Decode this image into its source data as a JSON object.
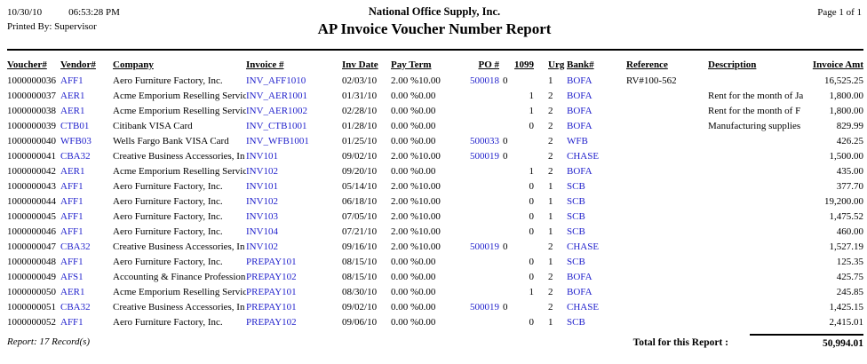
{
  "header": {
    "date": "10/30/10",
    "time": "06:53:28 PM",
    "printed_by": "Printed By: Supervisor",
    "company_name": "National Office Supply, Inc.",
    "report_title": "AP Invoice Voucher Number Report",
    "page_label": "Page 1 of 1"
  },
  "colors": {
    "link_blue": "#2222CC",
    "text": "#000000"
  },
  "columns": [
    "Voucher#",
    "Vendor#",
    "Company",
    "Invoice #",
    "Inv Date",
    "Pay Term",
    "PO #",
    "1099",
    "Urg",
    "Bank#",
    "Reference",
    "Description",
    "Invoice Amt"
  ],
  "rows": [
    {
      "voucher": "1000000036",
      "vendor": "AFF1",
      "company": "Aero Furniture Factory, Inc.",
      "invoice": "INV_AFF1010",
      "inv_date": "02/03/10",
      "pay_term": "2.00 %10.00",
      "po": "500018",
      "f1099": "0",
      "urg": "1",
      "bank": "BOFA",
      "reference": "RV#100-562",
      "description": "",
      "amount": "16,525.25"
    },
    {
      "voucher": "1000000037",
      "vendor": "AER1",
      "company": "Acme Emporium Reselling Servic",
      "invoice": "INV_AER1001",
      "inv_date": "01/31/10",
      "pay_term": "0.00 %0.00",
      "po": "",
      "f1099": "1",
      "urg": "2",
      "bank": "BOFA",
      "reference": "",
      "description": "Rent for the month of Ja",
      "amount": "1,800.00"
    },
    {
      "voucher": "1000000038",
      "vendor": "AER1",
      "company": "Acme Emporium Reselling Servic",
      "invoice": "INV_AER1002",
      "inv_date": "02/28/10",
      "pay_term": "0.00 %0.00",
      "po": "",
      "f1099": "1",
      "urg": "2",
      "bank": "BOFA",
      "reference": "",
      "description": "Rent for the month of F",
      "amount": "1,800.00"
    },
    {
      "voucher": "1000000039",
      "vendor": "CTB01",
      "company": "Citibank VISA Card",
      "invoice": "INV_CTB1001",
      "inv_date": "01/28/10",
      "pay_term": "0.00 %0.00",
      "po": "",
      "f1099": "0",
      "urg": "2",
      "bank": "BOFA",
      "reference": "",
      "description": "Manufacturing supplies",
      "amount": "829.99"
    },
    {
      "voucher": "1000000040",
      "vendor": "WFB03",
      "company": "Wells Fargo Bank VISA Card",
      "invoice": "INV_WFB1001",
      "inv_date": "01/25/10",
      "pay_term": "0.00 %0.00",
      "po": "500033",
      "f1099": "0",
      "urg": "2",
      "bank": "WFB",
      "reference": "",
      "description": "",
      "amount": "426.25"
    },
    {
      "voucher": "1000000041",
      "vendor": "CBA32",
      "company": "Creative Business Accessories, In",
      "invoice": "INV101",
      "inv_date": "09/02/10",
      "pay_term": "2.00 %10.00",
      "po": "500019",
      "f1099": "0",
      "urg": "2",
      "bank": "CHASE",
      "reference": "",
      "description": "",
      "amount": "1,500.00"
    },
    {
      "voucher": "1000000042",
      "vendor": "AER1",
      "company": "Acme Emporium Reselling Servic",
      "invoice": "INV102",
      "inv_date": "09/20/10",
      "pay_term": "0.00 %0.00",
      "po": "",
      "f1099": "1",
      "urg": "2",
      "bank": "BOFA",
      "reference": "",
      "description": "",
      "amount": "435.00"
    },
    {
      "voucher": "1000000043",
      "vendor": "AFF1",
      "company": "Aero Furniture Factory, Inc.",
      "invoice": "INV101",
      "inv_date": "05/14/10",
      "pay_term": "2.00 %10.00",
      "po": "",
      "f1099": "0",
      "urg": "1",
      "bank": "SCB",
      "reference": "",
      "description": "",
      "amount": "377.70"
    },
    {
      "voucher": "1000000044",
      "vendor": "AFF1",
      "company": "Aero Furniture Factory, Inc.",
      "invoice": "INV102",
      "inv_date": "06/18/10",
      "pay_term": "2.00 %10.00",
      "po": "",
      "f1099": "0",
      "urg": "1",
      "bank": "SCB",
      "reference": "",
      "description": "",
      "amount": "19,200.00"
    },
    {
      "voucher": "1000000045",
      "vendor": "AFF1",
      "company": "Aero Furniture Factory, Inc.",
      "invoice": "INV103",
      "inv_date": "07/05/10",
      "pay_term": "2.00 %10.00",
      "po": "",
      "f1099": "0",
      "urg": "1",
      "bank": "SCB",
      "reference": "",
      "description": "",
      "amount": "1,475.52"
    },
    {
      "voucher": "1000000046",
      "vendor": "AFF1",
      "company": "Aero Furniture Factory, Inc.",
      "invoice": "INV104",
      "inv_date": "07/21/10",
      "pay_term": "2.00 %10.00",
      "po": "",
      "f1099": "0",
      "urg": "1",
      "bank": "SCB",
      "reference": "",
      "description": "",
      "amount": "460.00"
    },
    {
      "voucher": "1000000047",
      "vendor": "CBA32",
      "company": "Creative Business Accessories, In",
      "invoice": "INV102",
      "inv_date": "09/16/10",
      "pay_term": "2.00 %10.00",
      "po": "500019",
      "f1099": "0",
      "urg": "2",
      "bank": "CHASE",
      "reference": "",
      "description": "",
      "amount": "1,527.19"
    },
    {
      "voucher": "1000000048",
      "vendor": "AFF1",
      "company": "Aero Furniture Factory, Inc.",
      "invoice": "PREPAY101",
      "inv_date": "08/15/10",
      "pay_term": "0.00 %0.00",
      "po": "",
      "f1099": "0",
      "urg": "1",
      "bank": "SCB",
      "reference": "",
      "description": "",
      "amount": "125.35"
    },
    {
      "voucher": "1000000049",
      "vendor": "AFS1",
      "company": "Accounting & Finance Profession",
      "invoice": "PREPAY102",
      "inv_date": "08/15/10",
      "pay_term": "0.00 %0.00",
      "po": "",
      "f1099": "0",
      "urg": "2",
      "bank": "BOFA",
      "reference": "",
      "description": "",
      "amount": "425.75"
    },
    {
      "voucher": "1000000050",
      "vendor": "AER1",
      "company": "Acme Emporium Reselling Servic",
      "invoice": "PREPAY101",
      "inv_date": "08/30/10",
      "pay_term": "0.00 %0.00",
      "po": "",
      "f1099": "1",
      "urg": "2",
      "bank": "BOFA",
      "reference": "",
      "description": "",
      "amount": "245.85"
    },
    {
      "voucher": "1000000051",
      "vendor": "CBA32",
      "company": "Creative Business Accessories, In",
      "invoice": "PREPAY101",
      "inv_date": "09/02/10",
      "pay_term": "0.00 %0.00",
      "po": "500019",
      "f1099": "0",
      "urg": "2",
      "bank": "CHASE",
      "reference": "",
      "description": "",
      "amount": "1,425.15"
    },
    {
      "voucher": "1000000052",
      "vendor": "AFF1",
      "company": "Aero Furniture Factory, Inc.",
      "invoice": "PREPAY102",
      "inv_date": "09/06/10",
      "pay_term": "0.00 %0.00",
      "po": "",
      "f1099": "0",
      "urg": "1",
      "bank": "SCB",
      "reference": "",
      "description": "",
      "amount": "2,415.01"
    }
  ],
  "footer": {
    "record_count": "Report: 17 Record(s)",
    "total_label": "Total for this Report :",
    "total_amount": "50,994.01"
  }
}
